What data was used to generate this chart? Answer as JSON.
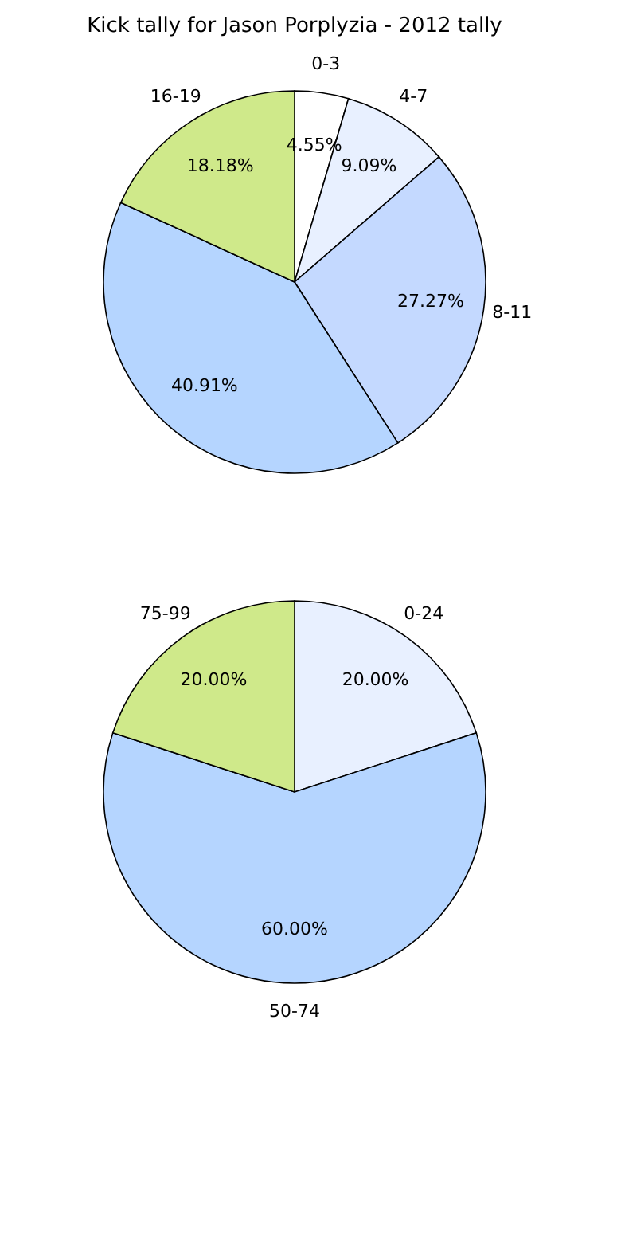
{
  "chart_data": [
    {
      "type": "pie",
      "title": "Kick tally for Jason Porplyzia - 2012 tally",
      "categories": [
        "0-3",
        "4-7",
        "8-11",
        null,
        "16-19"
      ],
      "values": [
        4.55,
        9.09,
        27.27,
        40.91,
        18.18
      ],
      "value_labels": [
        "4.55%",
        "9.09%",
        "27.27%",
        "40.91%",
        "18.18%"
      ],
      "colors": [
        "#ffffff",
        "#e8f0ff",
        "#c4d9ff",
        "#b5d5ff",
        "#cfe98a"
      ]
    },
    {
      "type": "pie",
      "categories": [
        "0-24",
        "50-74",
        "75-99"
      ],
      "values": [
        20,
        60,
        20
      ],
      "value_labels": [
        "20.00%",
        "60.00%",
        "20.00%"
      ],
      "colors": [
        "#e8f0ff",
        "#b5d5ff",
        "#cfe98a"
      ]
    }
  ]
}
